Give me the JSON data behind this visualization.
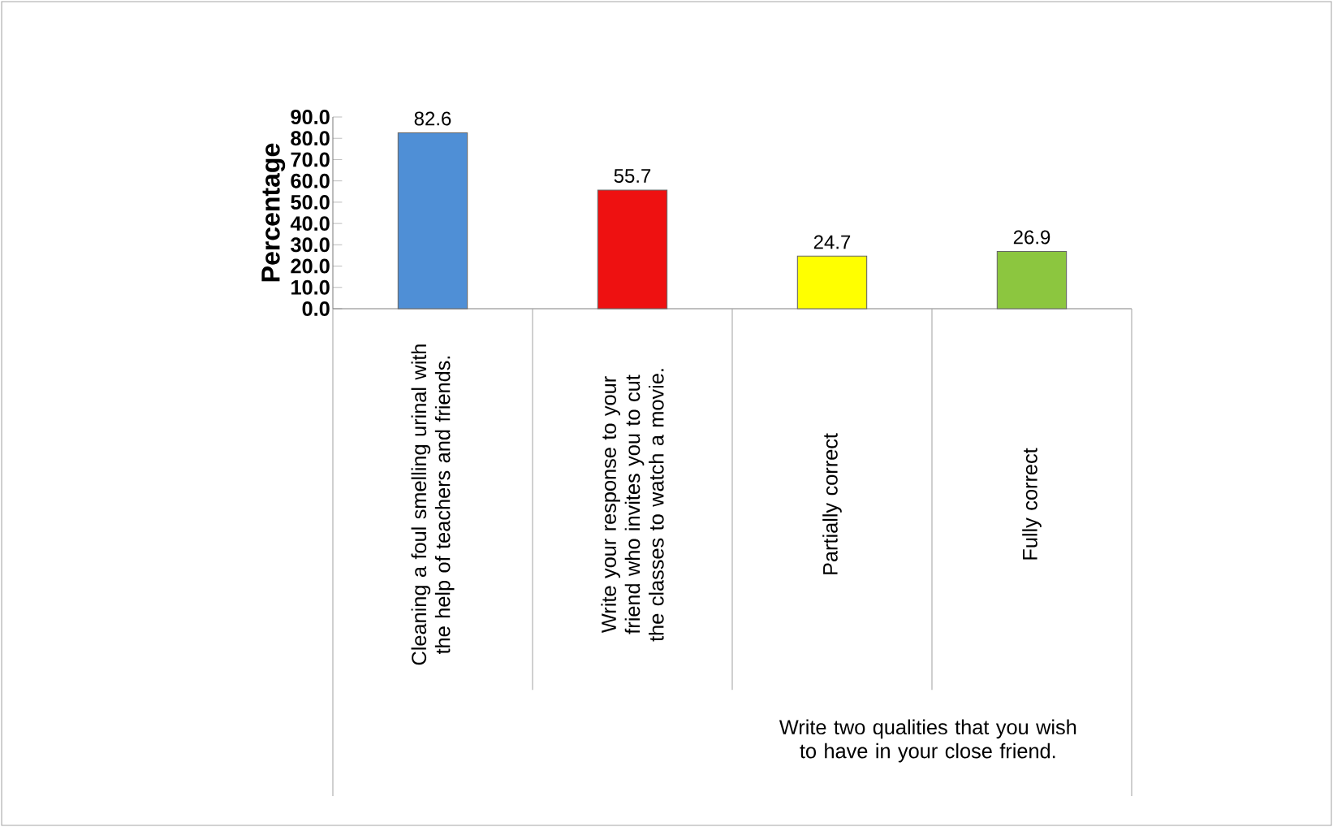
{
  "chart_data": {
    "type": "bar",
    "ylabel": "Percentage",
    "categories": [
      "Cleaning a foul smelling urinal with the help of teachers and friends.",
      "Write your response to your friend who invites you to cut the classes to watch a movie.",
      "Partially correct",
      "Fully correct"
    ],
    "values": [
      82.6,
      55.7,
      24.7,
      26.9
    ],
    "colors": [
      "#4f8fd6",
      "#ee1111",
      "#ffff00",
      "#8cc63f"
    ],
    "ylim": [
      0,
      90
    ],
    "yticks": [
      {
        "value": 0,
        "label": "0.0"
      },
      {
        "value": 10,
        "label": "10.0"
      },
      {
        "value": 20,
        "label": "20.0"
      },
      {
        "value": 30,
        "label": "30.0"
      },
      {
        "value": 40,
        "label": "40.0"
      },
      {
        "value": 50,
        "label": "50.0"
      },
      {
        "value": 60,
        "label": "60.0"
      },
      {
        "value": 70,
        "label": "70.0"
      },
      {
        "value": 80,
        "label": "80.0"
      },
      {
        "value": 90,
        "label": "90.0"
      }
    ],
    "data_labels": true,
    "annotations": [
      "Write two qualities that you wish to have in your close friend."
    ]
  }
}
